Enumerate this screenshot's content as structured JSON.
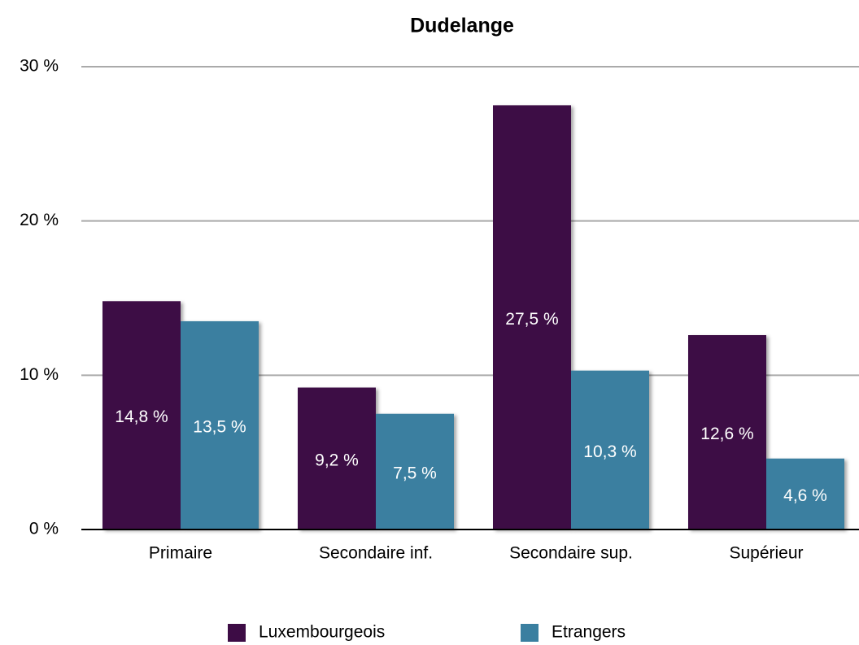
{
  "chart_data": {
    "type": "bar",
    "title": "Dudelange",
    "categories": [
      "Primaire",
      "Secondaire inf.",
      "Secondaire sup.",
      "Supérieur"
    ],
    "series": [
      {
        "name": "Luxembourgeois",
        "color": "#3d0c45",
        "values": [
          14.8,
          9.2,
          27.5,
          12.6
        ],
        "value_labels": [
          "14,8 %",
          "9,2 %",
          "27,5 %",
          "12,6 %"
        ]
      },
      {
        "name": "Etrangers",
        "color": "#3a7fa0",
        "values": [
          13.5,
          7.5,
          10.3,
          4.6
        ],
        "value_labels": [
          "13,5 %",
          "7,5 %",
          "10,3 %",
          "4,6 %"
        ]
      }
    ],
    "ylim": [
      0,
      30
    ],
    "yticks": [
      {
        "value": 0,
        "label": "0 %"
      },
      {
        "value": 10,
        "label": "10 %"
      },
      {
        "value": 20,
        "label": "20 %"
      },
      {
        "value": 30,
        "label": "30 %"
      }
    ],
    "grid": true,
    "legend": "bottom"
  }
}
